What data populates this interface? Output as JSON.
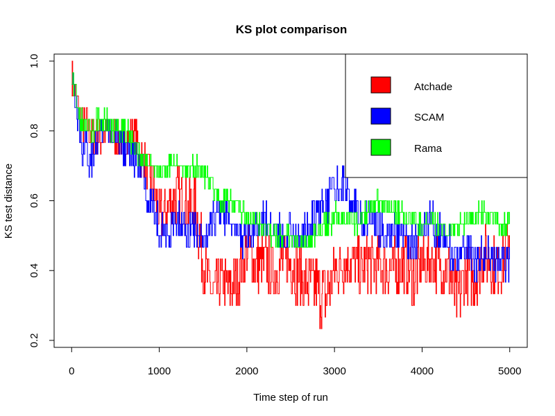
{
  "chart_data": {
    "type": "line",
    "title": "KS plot comparison",
    "xlabel": "Time step of run",
    "ylabel": "KS test distance",
    "xlim": [
      -200,
      5200
    ],
    "ylim": [
      0.18,
      1.02
    ],
    "xticks": [
      0,
      1000,
      2000,
      3000,
      4000,
      5000
    ],
    "yticks": [
      0.2,
      0.4,
      0.6,
      0.8,
      1.0
    ],
    "xtick_labels": [
      "0",
      "1000",
      "2000",
      "3000",
      "4000",
      "5000"
    ],
    "ytick_labels": [
      "0.2",
      "0.4",
      "0.6",
      "0.8",
      "1.0"
    ],
    "legend_position": "top-right",
    "grid": false,
    "series": [
      {
        "name": "Atchade",
        "color": "#ff0000",
        "x": [
          0,
          100,
          200,
          300,
          400,
          500,
          600,
          700,
          800,
          900,
          1000,
          1100,
          1200,
          1300,
          1400,
          1500,
          1600,
          1700,
          1800,
          1900,
          2000,
          2100,
          2200,
          2300,
          2400,
          2500,
          2600,
          2700,
          2800,
          2900,
          3000,
          3100,
          3200,
          3300,
          3400,
          3500,
          3600,
          3700,
          3800,
          3900,
          4000,
          4100,
          4200,
          4300,
          4400,
          4500,
          4600,
          4700,
          4800,
          4900,
          5000
        ],
        "y": [
          0.95,
          0.83,
          0.8,
          0.77,
          0.8,
          0.78,
          0.77,
          0.8,
          0.72,
          0.68,
          0.55,
          0.58,
          0.62,
          0.58,
          0.6,
          0.43,
          0.33,
          0.37,
          0.35,
          0.38,
          0.45,
          0.42,
          0.42,
          0.4,
          0.42,
          0.42,
          0.38,
          0.36,
          0.35,
          0.32,
          0.4,
          0.42,
          0.43,
          0.4,
          0.42,
          0.42,
          0.4,
          0.4,
          0.42,
          0.38,
          0.42,
          0.43,
          0.42,
          0.4,
          0.3,
          0.4,
          0.37,
          0.45,
          0.42,
          0.4,
          0.5
        ],
        "band": [
          0.05,
          0.06,
          0.06,
          0.06,
          0.06,
          0.06,
          0.06,
          0.06,
          0.06,
          0.06,
          0.08,
          0.08,
          0.08,
          0.08,
          0.08,
          0.1,
          0.07,
          0.08,
          0.08,
          0.08,
          0.08,
          0.09,
          0.08,
          0.09,
          0.08,
          0.08,
          0.09,
          0.09,
          0.1,
          0.1,
          0.08,
          0.08,
          0.08,
          0.08,
          0.08,
          0.08,
          0.08,
          0.09,
          0.08,
          0.09,
          0.08,
          0.08,
          0.08,
          0.09,
          0.1,
          0.08,
          0.09,
          0.08,
          0.08,
          0.08,
          0.08
        ]
      },
      {
        "name": "SCAM",
        "color": "#0000ff",
        "x": [
          0,
          100,
          200,
          300,
          400,
          500,
          600,
          700,
          800,
          900,
          1000,
          1100,
          1200,
          1300,
          1400,
          1500,
          1600,
          1700,
          1800,
          1900,
          2000,
          2100,
          2200,
          2300,
          2400,
          2500,
          2600,
          2700,
          2800,
          2900,
          3000,
          3100,
          3200,
          3300,
          3400,
          3500,
          3600,
          3700,
          3800,
          3900,
          4000,
          4100,
          4200,
          4300,
          4400,
          4500,
          4600,
          4700,
          4800,
          4900,
          5000
        ],
        "y": [
          0.97,
          0.77,
          0.72,
          0.78,
          0.8,
          0.78,
          0.75,
          0.73,
          0.68,
          0.6,
          0.52,
          0.5,
          0.55,
          0.52,
          0.53,
          0.5,
          0.53,
          0.57,
          0.55,
          0.5,
          0.48,
          0.52,
          0.55,
          0.52,
          0.5,
          0.52,
          0.5,
          0.52,
          0.57,
          0.6,
          0.63,
          0.65,
          0.6,
          0.55,
          0.55,
          0.52,
          0.5,
          0.52,
          0.5,
          0.48,
          0.52,
          0.55,
          0.5,
          0.47,
          0.42,
          0.48,
          0.42,
          0.45,
          0.43,
          0.42,
          0.42
        ],
        "band": [
          0.04,
          0.06,
          0.07,
          0.05,
          0.04,
          0.05,
          0.05,
          0.05,
          0.06,
          0.06,
          0.05,
          0.05,
          0.05,
          0.05,
          0.05,
          0.05,
          0.05,
          0.05,
          0.05,
          0.05,
          0.05,
          0.05,
          0.05,
          0.05,
          0.05,
          0.05,
          0.05,
          0.05,
          0.06,
          0.06,
          0.06,
          0.05,
          0.05,
          0.05,
          0.05,
          0.05,
          0.05,
          0.05,
          0.05,
          0.05,
          0.05,
          0.05,
          0.06,
          0.06,
          0.06,
          0.05,
          0.05,
          0.05,
          0.05,
          0.05,
          0.05
        ]
      },
      {
        "name": "Rama",
        "color": "#00ff00",
        "x": [
          0,
          100,
          200,
          300,
          400,
          500,
          600,
          700,
          800,
          900,
          1000,
          1100,
          1200,
          1300,
          1400,
          1500,
          1600,
          1700,
          1800,
          1900,
          2000,
          2100,
          2200,
          2300,
          2400,
          2500,
          2600,
          2700,
          2800,
          2900,
          3000,
          3100,
          3200,
          3300,
          3400,
          3500,
          3600,
          3700,
          3800,
          3900,
          4000,
          4100,
          4200,
          4300,
          4400,
          4500,
          4600,
          4700,
          4800,
          4900,
          5000
        ],
        "y": [
          0.95,
          0.83,
          0.8,
          0.83,
          0.82,
          0.8,
          0.8,
          0.77,
          0.72,
          0.7,
          0.68,
          0.7,
          0.7,
          0.68,
          0.7,
          0.68,
          0.65,
          0.6,
          0.6,
          0.58,
          0.56,
          0.55,
          0.52,
          0.5,
          0.5,
          0.5,
          0.48,
          0.48,
          0.52,
          0.53,
          0.55,
          0.55,
          0.53,
          0.55,
          0.57,
          0.6,
          0.58,
          0.57,
          0.55,
          0.55,
          0.52,
          0.55,
          0.52,
          0.52,
          0.52,
          0.55,
          0.55,
          0.57,
          0.55,
          0.53,
          0.55
        ],
        "band": [
          0.03,
          0.04,
          0.04,
          0.03,
          0.04,
          0.03,
          0.04,
          0.04,
          0.03,
          0.02,
          0.02,
          0.02,
          0.02,
          0.03,
          0.03,
          0.03,
          0.03,
          0.03,
          0.03,
          0.03,
          0.03,
          0.03,
          0.03,
          0.03,
          0.03,
          0.03,
          0.03,
          0.03,
          0.04,
          0.04,
          0.04,
          0.03,
          0.03,
          0.03,
          0.03,
          0.03,
          0.03,
          0.03,
          0.03,
          0.03,
          0.03,
          0.03,
          0.03,
          0.03,
          0.03,
          0.03,
          0.03,
          0.03,
          0.03,
          0.03,
          0.03
        ]
      }
    ]
  }
}
